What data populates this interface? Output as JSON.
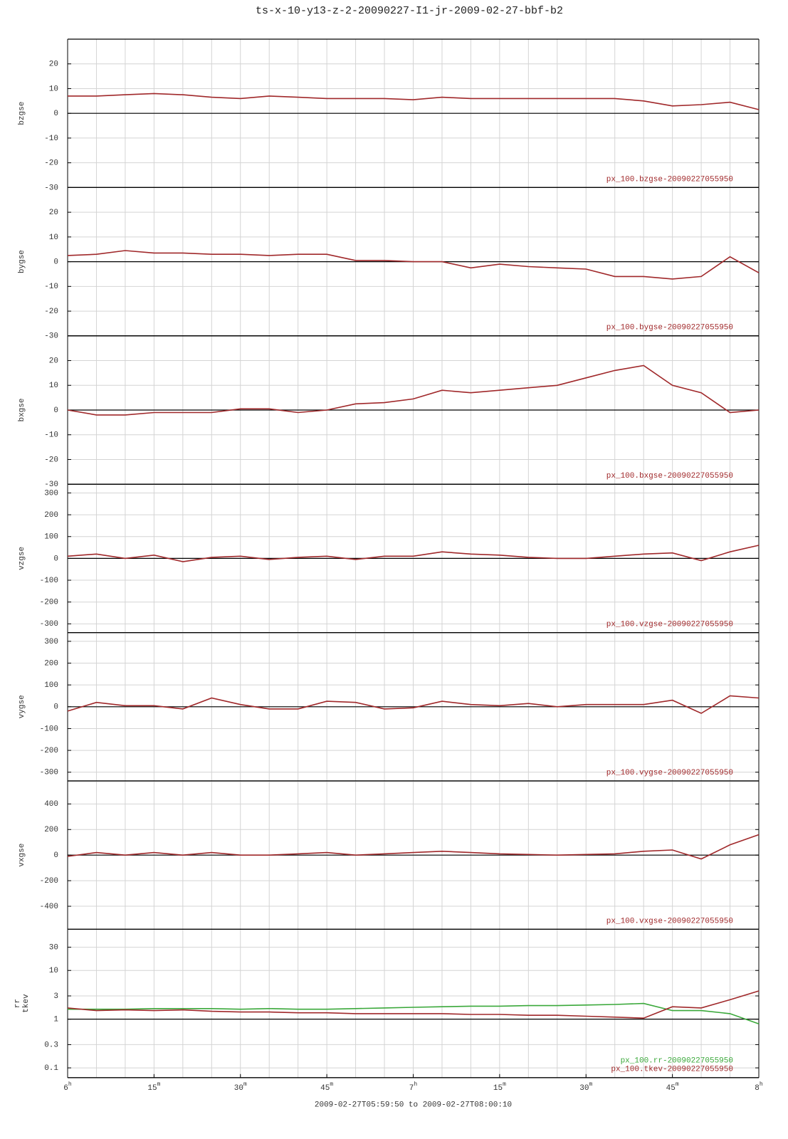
{
  "chart_data": [
    {
      "type": "line",
      "title": "ts-x-10-y13-z-2-20090227-I1-jr-2009-02-27-bbf-b2",
      "ylabel": "bzgse",
      "x": [
        0,
        5,
        10,
        15,
        20,
        25,
        30,
        35,
        40,
        45,
        50,
        55,
        60,
        65,
        70,
        75,
        80,
        85,
        90,
        95,
        100,
        105,
        110,
        115,
        120
      ],
      "series": [
        {
          "name": "px_100.bzgse-20090227055950",
          "color": "#a0282a",
          "values": [
            7,
            7,
            7.5,
            8,
            7.5,
            6.5,
            6,
            7,
            6.5,
            6,
            6,
            6,
            5.5,
            6.5,
            6,
            6,
            6,
            6,
            6,
            6,
            5,
            3,
            3.5,
            4.5,
            1.5
          ]
        }
      ],
      "ylim": [
        -30,
        30
      ],
      "yticks": [
        -30,
        -20,
        -10,
        0,
        10,
        20
      ],
      "baseline": 0,
      "grid": true
    },
    {
      "type": "line",
      "ylabel": "bygse",
      "x": [
        0,
        5,
        10,
        15,
        20,
        25,
        30,
        35,
        40,
        45,
        50,
        55,
        60,
        65,
        70,
        75,
        80,
        85,
        90,
        95,
        100,
        105,
        110,
        115,
        120
      ],
      "series": [
        {
          "name": "px_100.bygse-20090227055950",
          "color": "#a0282a",
          "values": [
            2.5,
            3,
            4.5,
            3.5,
            3.5,
            3,
            3,
            2.5,
            3,
            3,
            0.5,
            0.5,
            0,
            0,
            -2.5,
            -1,
            -2,
            -2.5,
            -3,
            -6,
            -6,
            -7,
            -6,
            2,
            -4.5
          ]
        }
      ],
      "ylim": [
        -30,
        30
      ],
      "yticks": [
        -30,
        -20,
        -10,
        0,
        10,
        20
      ],
      "baseline": 0,
      "grid": true
    },
    {
      "type": "line",
      "ylabel": "bxgse",
      "x": [
        0,
        5,
        10,
        15,
        20,
        25,
        30,
        35,
        40,
        45,
        50,
        55,
        60,
        65,
        70,
        75,
        80,
        85,
        90,
        95,
        100,
        105,
        110,
        115,
        120
      ],
      "series": [
        {
          "name": "px_100.bxgse-20090227055950",
          "color": "#a0282a",
          "values": [
            0,
            -2,
            -2,
            -1,
            -1,
            -1,
            0.5,
            0.5,
            -1,
            0,
            2.5,
            3,
            4.5,
            8,
            7,
            8,
            9,
            10,
            13,
            16,
            18,
            10,
            7,
            -1,
            0
          ]
        }
      ],
      "ylim": [
        -30,
        30
      ],
      "yticks": [
        -30,
        -20,
        -10,
        0,
        10,
        20
      ],
      "baseline": 0,
      "grid": true
    },
    {
      "type": "line",
      "ylabel": "vzgse",
      "x": [
        0,
        5,
        10,
        15,
        20,
        25,
        30,
        35,
        40,
        45,
        50,
        55,
        60,
        65,
        70,
        75,
        80,
        85,
        90,
        95,
        100,
        105,
        110,
        115,
        120
      ],
      "series": [
        {
          "name": "px_100.vzgse-20090227055950",
          "color": "#a0282a",
          "values": [
            10,
            20,
            0,
            15,
            -15,
            5,
            10,
            -5,
            5,
            10,
            -5,
            10,
            10,
            30,
            20,
            15,
            5,
            0,
            0,
            10,
            20,
            25,
            -10,
            30,
            60
          ]
        }
      ],
      "ylim": [
        -340,
        340
      ],
      "yticks": [
        -300,
        -200,
        -100,
        0,
        100,
        200,
        300
      ],
      "baseline": 0,
      "grid": true
    },
    {
      "type": "line",
      "ylabel": "vygse",
      "x": [
        0,
        5,
        10,
        15,
        20,
        25,
        30,
        35,
        40,
        45,
        50,
        55,
        60,
        65,
        70,
        75,
        80,
        85,
        90,
        95,
        100,
        105,
        110,
        115,
        120
      ],
      "series": [
        {
          "name": "px_100.vygse-20090227055950",
          "color": "#a0282a",
          "values": [
            -20,
            20,
            5,
            5,
            -10,
            40,
            10,
            -10,
            -10,
            25,
            20,
            -10,
            -5,
            25,
            10,
            5,
            15,
            0,
            10,
            10,
            10,
            30,
            -30,
            50,
            40
          ]
        }
      ],
      "ylim": [
        -340,
        340
      ],
      "yticks": [
        -300,
        -200,
        -100,
        0,
        100,
        200,
        300
      ],
      "baseline": 0,
      "grid": true
    },
    {
      "type": "line",
      "ylabel": "vxgse",
      "x": [
        0,
        5,
        10,
        15,
        20,
        25,
        30,
        35,
        40,
        45,
        50,
        55,
        60,
        65,
        70,
        75,
        80,
        85,
        90,
        95,
        100,
        105,
        110,
        115,
        120
      ],
      "series": [
        {
          "name": "px_100.vxgse-20090227055950",
          "color": "#a0282a",
          "values": [
            -10,
            20,
            0,
            20,
            0,
            20,
            0,
            0,
            10,
            20,
            0,
            10,
            20,
            30,
            20,
            10,
            5,
            0,
            5,
            10,
            30,
            40,
            -30,
            80,
            160
          ]
        }
      ],
      "ylim": [
        -580,
        580
      ],
      "yticks": [
        -400,
        -200,
        0,
        200,
        400
      ],
      "baseline": 0,
      "grid": true
    },
    {
      "type": "line",
      "ylabel": [
        "rr",
        "tkev"
      ],
      "log": true,
      "x": [
        0,
        5,
        10,
        15,
        20,
        25,
        30,
        35,
        40,
        45,
        50,
        55,
        60,
        65,
        70,
        75,
        80,
        85,
        90,
        95,
        100,
        105,
        110,
        115,
        120
      ],
      "series": [
        {
          "name": "px_100.rr-20090227055950",
          "color": "#3aa83a",
          "values": [
            1.6,
            1.6,
            1.6,
            1.65,
            1.65,
            1.65,
            1.6,
            1.65,
            1.6,
            1.6,
            1.65,
            1.7,
            1.75,
            1.8,
            1.85,
            1.85,
            1.9,
            1.9,
            1.95,
            2.0,
            2.1,
            1.5,
            1.5,
            1.3,
            0.8
          ]
        },
        {
          "name": "px_100.tkev-20090227055950",
          "color": "#a0282a",
          "values": [
            1.7,
            1.5,
            1.55,
            1.5,
            1.55,
            1.45,
            1.4,
            1.4,
            1.35,
            1.35,
            1.3,
            1.3,
            1.3,
            1.3,
            1.25,
            1.25,
            1.2,
            1.2,
            1.15,
            1.1,
            1.05,
            1.8,
            1.7,
            2.5,
            3.8
          ]
        }
      ],
      "ylim": [
        0.063,
        70
      ],
      "yticks": [
        0.1,
        0.3,
        1,
        3,
        10,
        30
      ],
      "baseline": 1,
      "grid": true,
      "xlim": [
        0,
        120
      ],
      "xticks": [
        {
          "value": 0,
          "label": "6h"
        },
        {
          "value": 15,
          "label": "15m"
        },
        {
          "value": 30,
          "label": "30m"
        },
        {
          "value": 45,
          "label": "45m"
        },
        {
          "value": 60,
          "label": "7h"
        },
        {
          "value": 75,
          "label": "15m"
        },
        {
          "value": 90,
          "label": "30m"
        },
        {
          "value": 105,
          "label": "45m"
        },
        {
          "value": 120,
          "label": "8h"
        }
      ],
      "xgrid": [
        0,
        5,
        10,
        15,
        20,
        25,
        30,
        35,
        40,
        45,
        50,
        55,
        60,
        65,
        70,
        75,
        80,
        85,
        90,
        95,
        100,
        105,
        110,
        115,
        120
      ],
      "xlabel": "2009-02-27T05:59:50 to 2009-02-27T08:00:10"
    }
  ]
}
